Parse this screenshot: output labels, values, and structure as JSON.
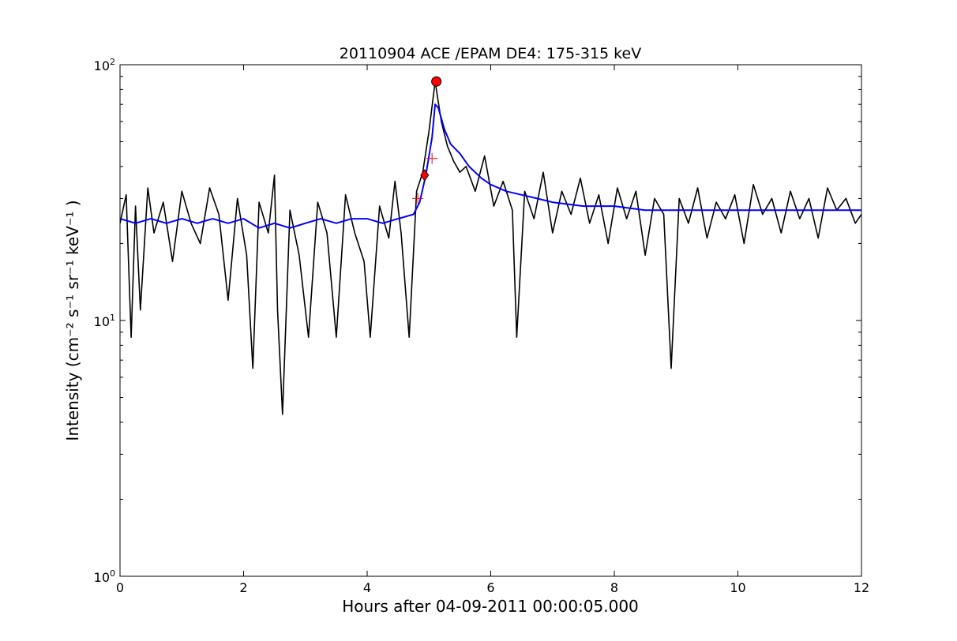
{
  "chart_data": {
    "type": "line",
    "title": "20110904 ACE /EPAM DE4: 175-315 keV",
    "xlabel": "Hours after 04-09-2011 00:00:05.000",
    "ylabel": "Intensity (cm⁻² s⁻¹ sr⁻¹ keV⁻¹ )",
    "xlim": [
      0,
      12
    ],
    "ylim": [
      1,
      100
    ],
    "yscale": "log",
    "grid": false,
    "x_ticks": [
      "0",
      "2",
      "4",
      "6",
      "8",
      "10",
      "12"
    ],
    "y_ticks": [
      {
        "base": "10",
        "exp": "0"
      },
      {
        "base": "10",
        "exp": "1"
      },
      {
        "base": "10",
        "exp": "2"
      }
    ],
    "series": [
      {
        "color": "#000000",
        "style": "raw",
        "points": [
          [
            0.0,
            24
          ],
          [
            0.1,
            31
          ],
          [
            0.18,
            8.6
          ],
          [
            0.25,
            28
          ],
          [
            0.33,
            11
          ],
          [
            0.45,
            33
          ],
          [
            0.55,
            22
          ],
          [
            0.7,
            29
          ],
          [
            0.85,
            17
          ],
          [
            1.0,
            32
          ],
          [
            1.15,
            24
          ],
          [
            1.3,
            20
          ],
          [
            1.45,
            33
          ],
          [
            1.6,
            26
          ],
          [
            1.75,
            12
          ],
          [
            1.9,
            30
          ],
          [
            2.05,
            18
          ],
          [
            2.15,
            6.5
          ],
          [
            2.25,
            29
          ],
          [
            2.4,
            22
          ],
          [
            2.5,
            37
          ],
          [
            2.55,
            11
          ],
          [
            2.63,
            4.3
          ],
          [
            2.75,
            27
          ],
          [
            2.9,
            18
          ],
          [
            3.05,
            8.6
          ],
          [
            3.2,
            29
          ],
          [
            3.35,
            22
          ],
          [
            3.5,
            8.6
          ],
          [
            3.65,
            31
          ],
          [
            3.8,
            22
          ],
          [
            3.95,
            17
          ],
          [
            4.05,
            8.6
          ],
          [
            4.2,
            28
          ],
          [
            4.35,
            21
          ],
          [
            4.45,
            35
          ],
          [
            4.55,
            22
          ],
          [
            4.68,
            8.6
          ],
          [
            4.8,
            32
          ],
          [
            4.9,
            38
          ],
          [
            5.0,
            55
          ],
          [
            5.1,
            86
          ],
          [
            5.2,
            60
          ],
          [
            5.3,
            48
          ],
          [
            5.4,
            42
          ],
          [
            5.5,
            38
          ],
          [
            5.6,
            40
          ],
          [
            5.75,
            32
          ],
          [
            5.9,
            44
          ],
          [
            6.05,
            28
          ],
          [
            6.2,
            35
          ],
          [
            6.35,
            27
          ],
          [
            6.42,
            8.6
          ],
          [
            6.55,
            32
          ],
          [
            6.7,
            25
          ],
          [
            6.85,
            38
          ],
          [
            7.0,
            22
          ],
          [
            7.15,
            32
          ],
          [
            7.3,
            26
          ],
          [
            7.45,
            36
          ],
          [
            7.6,
            24
          ],
          [
            7.75,
            31
          ],
          [
            7.9,
            20
          ],
          [
            8.05,
            33
          ],
          [
            8.2,
            25
          ],
          [
            8.35,
            32
          ],
          [
            8.5,
            18
          ],
          [
            8.65,
            30
          ],
          [
            8.8,
            26
          ],
          [
            8.92,
            6.5
          ],
          [
            9.05,
            30
          ],
          [
            9.2,
            24
          ],
          [
            9.35,
            33
          ],
          [
            9.5,
            21
          ],
          [
            9.65,
            29
          ],
          [
            9.8,
            25
          ],
          [
            9.95,
            31
          ],
          [
            10.1,
            20
          ],
          [
            10.25,
            34
          ],
          [
            10.4,
            26
          ],
          [
            10.55,
            30
          ],
          [
            10.7,
            22
          ],
          [
            10.85,
            32
          ],
          [
            11.0,
            25
          ],
          [
            11.15,
            30
          ],
          [
            11.3,
            21
          ],
          [
            11.45,
            33
          ],
          [
            11.6,
            27
          ],
          [
            11.75,
            30
          ],
          [
            11.9,
            24
          ],
          [
            12.0,
            26
          ]
        ]
      },
      {
        "color": "#0000ff",
        "style": "smoothed",
        "points": [
          [
            0.0,
            25
          ],
          [
            0.25,
            24
          ],
          [
            0.5,
            25
          ],
          [
            0.75,
            24
          ],
          [
            1.0,
            25
          ],
          [
            1.25,
            24
          ],
          [
            1.5,
            25
          ],
          [
            1.75,
            24
          ],
          [
            2.0,
            25
          ],
          [
            2.25,
            23
          ],
          [
            2.5,
            24
          ],
          [
            2.75,
            23
          ],
          [
            3.0,
            24
          ],
          [
            3.25,
            25
          ],
          [
            3.5,
            24
          ],
          [
            3.75,
            25
          ],
          [
            4.0,
            25
          ],
          [
            4.25,
            24
          ],
          [
            4.5,
            25
          ],
          [
            4.75,
            26
          ],
          [
            4.85,
            29
          ],
          [
            4.95,
            37
          ],
          [
            5.05,
            52
          ],
          [
            5.1,
            70
          ],
          [
            5.15,
            68
          ],
          [
            5.25,
            56
          ],
          [
            5.35,
            49
          ],
          [
            5.5,
            45
          ],
          [
            5.65,
            40
          ],
          [
            5.85,
            36
          ],
          [
            6.0,
            34
          ],
          [
            6.25,
            32
          ],
          [
            6.5,
            31
          ],
          [
            6.75,
            30
          ],
          [
            7.0,
            29
          ],
          [
            7.5,
            28
          ],
          [
            8.0,
            28
          ],
          [
            8.5,
            27
          ],
          [
            9.0,
            27
          ],
          [
            9.5,
            27
          ],
          [
            10.0,
            27
          ],
          [
            10.5,
            27
          ],
          [
            11.0,
            27
          ],
          [
            11.5,
            27
          ],
          [
            12.0,
            27
          ]
        ]
      }
    ],
    "markers": [
      {
        "shape": "circle",
        "x": 5.12,
        "y": 86,
        "color": "#ff0000"
      },
      {
        "shape": "diamond",
        "x": 4.93,
        "y": 37,
        "color": "#ff0000"
      },
      {
        "shape": "plus",
        "x": 5.05,
        "y": 43,
        "color": "#ff0000"
      },
      {
        "shape": "plus",
        "x": 4.82,
        "y": 30,
        "color": "#ff0000"
      }
    ]
  }
}
